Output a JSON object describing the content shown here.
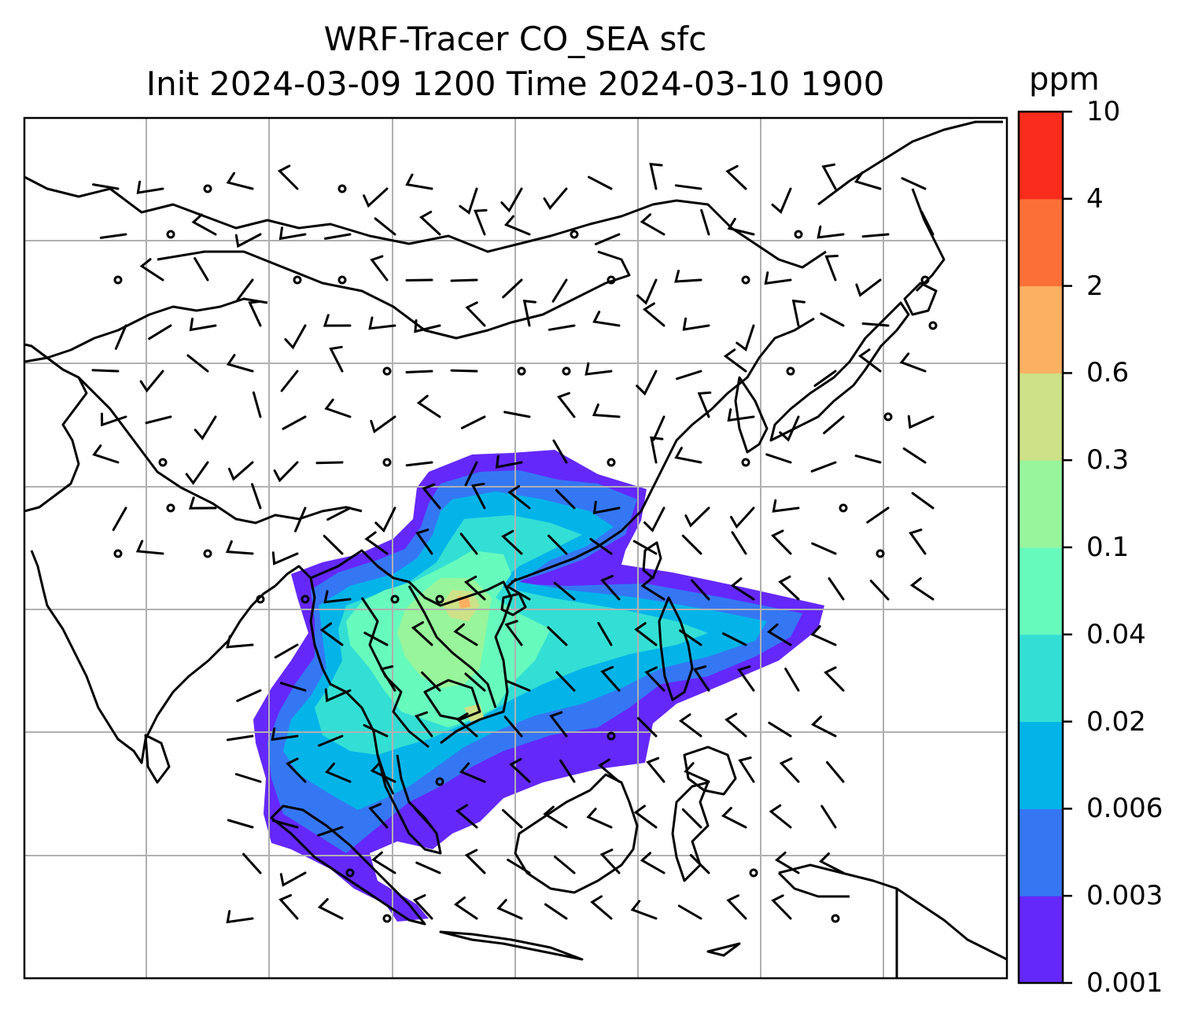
{
  "title_line1": "WRF-Tracer CO_SEA sfc",
  "title_line2": "Init 2024-03-09 1200 Time 2024-03-10 1900",
  "colorbar": {
    "unit": "ppm",
    "levels": [
      "0.001",
      "0.003",
      "0.006",
      "0.02",
      "0.04",
      "0.1",
      "0.3",
      "0.6",
      "2",
      "4",
      "10"
    ],
    "colors": [
      "#6428fa",
      "#3577f3",
      "#04b4e9",
      "#33dfd4",
      "#67fabd",
      "#98f59b",
      "#cde188",
      "#fcb062",
      "#fc7038",
      "#fa2c1b"
    ]
  },
  "map": {
    "field": "CO_SEA tracer concentration (surface)",
    "ocean_color": "#ffffff",
    "coastline_color": "#000000",
    "gridline_color": "#b0b0b0",
    "wind_barbs": true
  }
}
